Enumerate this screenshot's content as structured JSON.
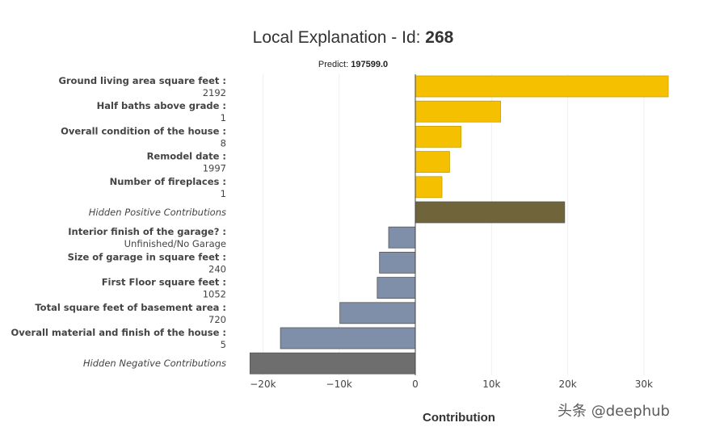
{
  "chart_data": {
    "type": "bar",
    "orientation": "horizontal",
    "title_prefix": "Local Explanation - Id: ",
    "title_id": "268",
    "subtitle_prefix": "Predict: ",
    "subtitle_value": "197599.0",
    "xlabel": "Contribution",
    "ylabel": "",
    "xlim": [
      -22000,
      35000
    ],
    "xticks": [
      -20000,
      -10000,
      0,
      10000,
      20000,
      30000
    ],
    "xtick_labels": [
      "−20k",
      "−10k",
      "0",
      "10k",
      "20k",
      "30k"
    ],
    "grid": "vertical",
    "bars": [
      {
        "name": "Ground living area square feet :",
        "value_label": "2192",
        "contribution": 33200,
        "kind": "positive"
      },
      {
        "name": "Half baths above grade :",
        "value_label": "1",
        "contribution": 11200,
        "kind": "positive"
      },
      {
        "name": "Overall condition of the house :",
        "value_label": "8",
        "contribution": 6000,
        "kind": "positive"
      },
      {
        "name": "Remodel date :",
        "value_label": "1997",
        "contribution": 4500,
        "kind": "positive"
      },
      {
        "name": "Number of fireplaces :",
        "value_label": "1",
        "contribution": 3500,
        "kind": "positive"
      },
      {
        "name": "Hidden Positive Contributions",
        "value_label": "",
        "contribution": 19600,
        "kind": "hidden-positive"
      },
      {
        "name": "Interior finish of the garage? :",
        "value_label": "Unfinished/No Garage",
        "contribution": -3500,
        "kind": "negative"
      },
      {
        "name": "Size of garage in square feet :",
        "value_label": "240",
        "contribution": -4700,
        "kind": "negative"
      },
      {
        "name": "First Floor square feet :",
        "value_label": "1052",
        "contribution": -5000,
        "kind": "negative"
      },
      {
        "name": "Total square feet of basement area :",
        "value_label": "720",
        "contribution": -9900,
        "kind": "negative"
      },
      {
        "name": "Overall material and finish of the house :",
        "value_label": "5",
        "contribution": -17700,
        "kind": "negative"
      },
      {
        "name": "Hidden Negative Contributions",
        "value_label": "",
        "contribution": -21700,
        "kind": "hidden-negative"
      }
    ],
    "colors": {
      "positive": "#f5c000",
      "hidden-positive": "#70653a",
      "negative": "#7f8faa",
      "hidden-negative": "#6e6e6e"
    }
  },
  "watermark": "头条 @deephub"
}
